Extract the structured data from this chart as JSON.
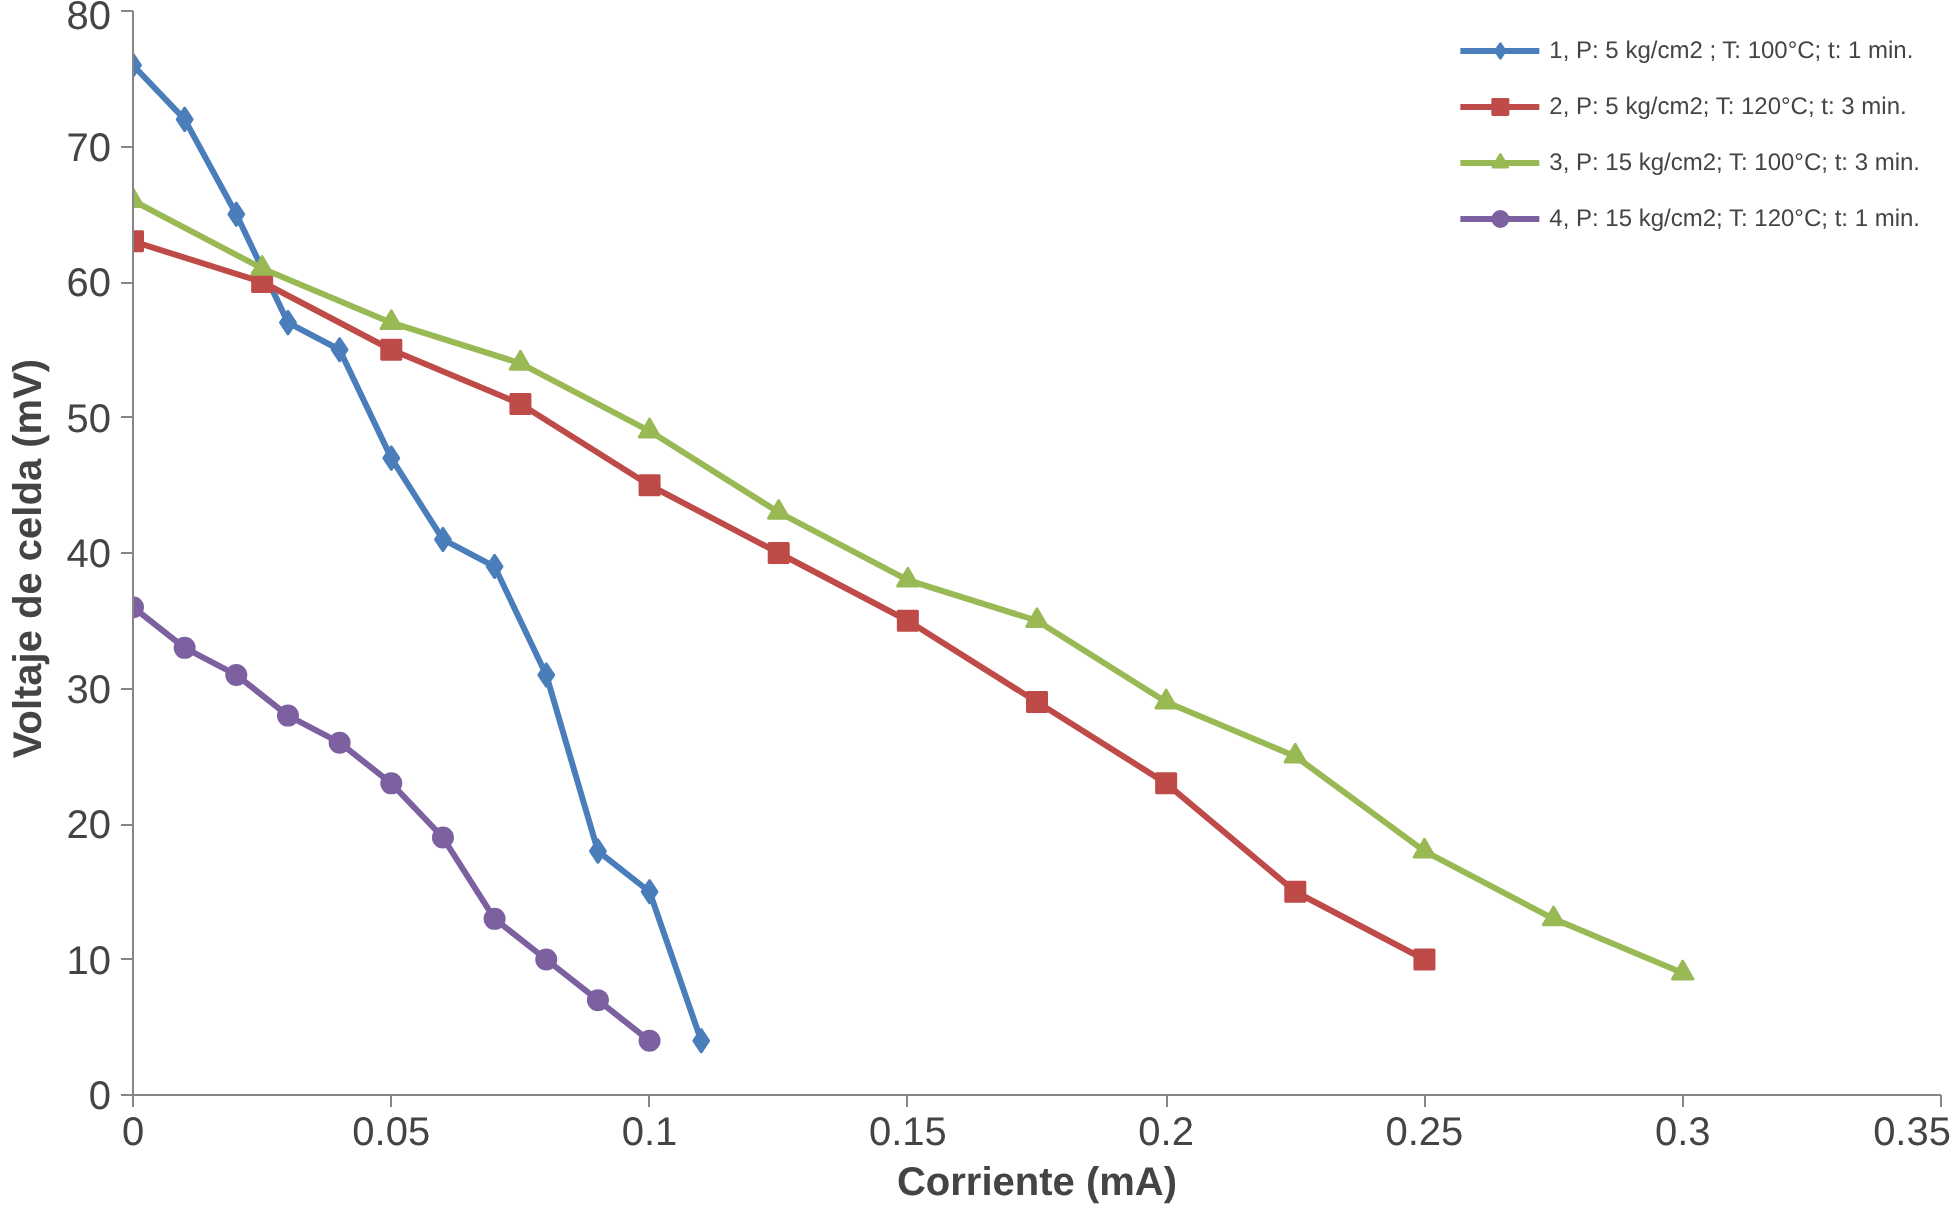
{
  "chart_data": {
    "type": "line",
    "xlabel": "Corriente (mA)",
    "ylabel": "Voltaje de celda  (mV)",
    "xlim": [
      0,
      0.35
    ],
    "xticks": [
      0,
      0.05,
      0.1,
      0.15,
      0.2,
      0.25,
      0.3,
      0.35
    ],
    "ylim": [
      0,
      80
    ],
    "yticks": [
      0,
      10,
      20,
      30,
      40,
      50,
      60,
      70,
      80
    ],
    "grid": false,
    "legend": "top right",
    "series": [
      {
        "name": "1, P: 5 kg/cm2 ; T: 100°C; t: 1 min.",
        "color": "#4a7ebb",
        "marker": "diamond",
        "x": [
          0,
          0.01,
          0.02,
          0.03,
          0.04,
          0.05,
          0.06,
          0.07,
          0.08,
          0.09,
          0.1,
          0.11
        ],
        "values": [
          76,
          72,
          65,
          57,
          55,
          47,
          41,
          39,
          31,
          18,
          15,
          4
        ]
      },
      {
        "name": "2, P: 5 kg/cm2; T: 120°C; t: 3 min.",
        "color": "#be4b48",
        "marker": "square",
        "x": [
          0,
          0.025,
          0.05,
          0.075,
          0.1,
          0.125,
          0.15,
          0.175,
          0.2,
          0.225,
          0.25
        ],
        "values": [
          63,
          60,
          55,
          51,
          45,
          40,
          35,
          29,
          23,
          15,
          10
        ]
      },
      {
        "name": "3, P: 15 kg/cm2; T: 100°C; t: 3 min.",
        "color": "#98b954",
        "marker": "triangle",
        "x": [
          0,
          0.025,
          0.05,
          0.075,
          0.1,
          0.125,
          0.15,
          0.175,
          0.2,
          0.225,
          0.25,
          0.275,
          0.3
        ],
        "values": [
          66,
          61,
          57,
          54,
          49,
          43,
          38,
          35,
          29,
          25,
          18,
          13,
          9
        ]
      },
      {
        "name": "4, P: 15 kg/cm2; T: 120°C; t: 1 min.",
        "color": "#7d60a0",
        "marker": "circle",
        "x": [
          0,
          0.01,
          0.02,
          0.03,
          0.04,
          0.05,
          0.06,
          0.07,
          0.08,
          0.09,
          0.1
        ],
        "values": [
          36,
          33,
          31,
          28,
          26,
          23,
          19,
          13,
          10,
          7,
          4
        ]
      }
    ]
  }
}
